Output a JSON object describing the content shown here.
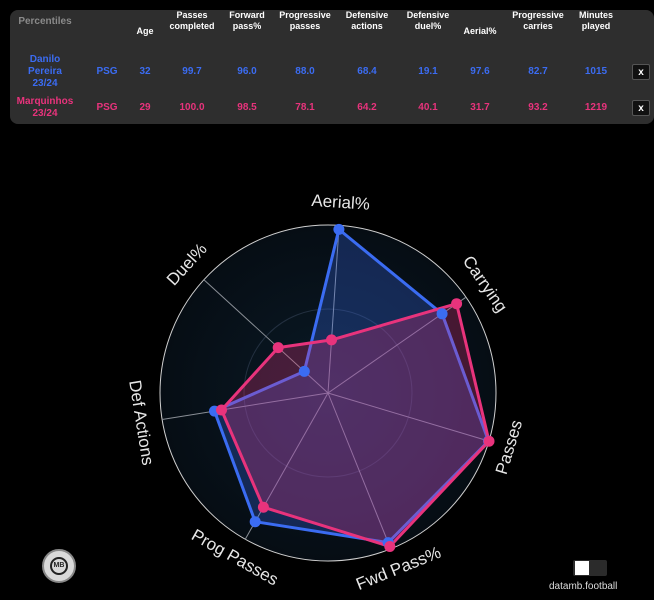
{
  "table": {
    "headers": [
      "Percentiles",
      "Age",
      "Passes completed",
      "Forward pass%",
      "Progressive passes",
      "Defensive actions",
      "Defensive duel%",
      "Aerial%",
      "Progressive carries",
      "Minutes played"
    ],
    "rows": [
      {
        "player": "Danilo Pereira 23/24",
        "team": "PSG",
        "age": "32",
        "values": [
          "99.7",
          "96.0",
          "88.0",
          "68.4",
          "19.1",
          "97.6",
          "82.7",
          "1015"
        ],
        "close": "x",
        "color": "#3b6cf2"
      },
      {
        "player": "Marquinhos 23/24",
        "team": "PSG",
        "age": "29",
        "values": [
          "100.0",
          "98.5",
          "78.1",
          "64.2",
          "40.1",
          "31.7",
          "93.2",
          "1219"
        ],
        "close": "x",
        "color": "#e8337c"
      }
    ]
  },
  "chart_data": {
    "type": "radar",
    "axes": [
      "Aerial%",
      "Carrying",
      "Passes",
      "Fwd Pass%",
      "Prog Passes",
      "Def Actions",
      "Duel%"
    ],
    "range": [
      0,
      100
    ],
    "series": [
      {
        "name": "Danilo Pereira 23/24",
        "color": "#3b6cf2",
        "values": [
          97.6,
          82.7,
          99.7,
          96.0,
          88.0,
          68.4,
          19.1
        ]
      },
      {
        "name": "Marquinhos 23/24",
        "color": "#e8337c",
        "values": [
          31.7,
          93.2,
          100.0,
          98.5,
          78.1,
          64.2,
          40.1
        ]
      }
    ]
  },
  "footer": {
    "logo_text": "MB",
    "brand": "datamb.football"
  }
}
